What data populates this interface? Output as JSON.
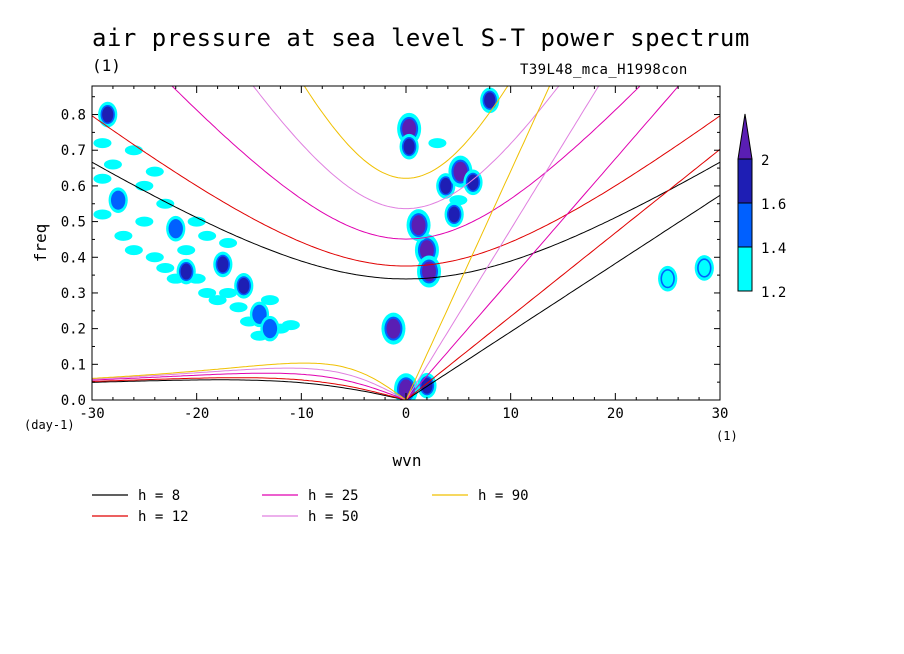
{
  "title": "air pressure at sea level S-T power spectrum",
  "subtitle_left": "(1)",
  "subtitle_right": "T39L48_mca_H1998con",
  "chart_data": {
    "type": "heatmap",
    "xlabel": "wvn",
    "ylabel": "freq",
    "x_unit": "(1)",
    "y_unit": "(day-1)",
    "xlim": [
      -30,
      30
    ],
    "ylim": [
      0.0,
      0.88
    ],
    "x_ticks": [
      -30,
      -20,
      -10,
      0,
      10,
      20,
      30
    ],
    "y_ticks": [
      0.0,
      0.1,
      0.2,
      0.3,
      0.4,
      0.5,
      0.6,
      0.7,
      0.8
    ],
    "colorbar": {
      "levels": [
        1.2,
        1.4,
        1.6,
        2
      ],
      "labels": [
        "1.2",
        "1.4",
        "1.6",
        "2"
      ],
      "colors": [
        "#00ffff",
        "#0060ff",
        "#1e1eb4",
        "#5a1eb4"
      ]
    },
    "dispersion_curves": [
      {
        "name": "h =  8",
        "h": 8,
        "color": "#000000"
      },
      {
        "name": "h = 12",
        "h": 12,
        "color": "#e00000"
      },
      {
        "name": "h = 25",
        "h": 25,
        "color": "#e000b0"
      },
      {
        "name": "h = 50",
        "h": 50,
        "color": "#e080e0"
      },
      {
        "name": "h = 90",
        "h": 90,
        "color": "#f0c000"
      }
    ],
    "blobs": [
      {
        "x": 0.3,
        "y": 0.76,
        "level": 2
      },
      {
        "x": 0.3,
        "y": 0.71,
        "level": 1.6
      },
      {
        "x": 2.0,
        "y": 0.42,
        "level": 2
      },
      {
        "x": 2.2,
        "y": 0.36,
        "level": 2
      },
      {
        "x": 1.2,
        "y": 0.49,
        "level": 2
      },
      {
        "x": 3.8,
        "y": 0.6,
        "level": 1.6
      },
      {
        "x": 5.2,
        "y": 0.64,
        "level": 2
      },
      {
        "x": 4.6,
        "y": 0.52,
        "level": 1.6
      },
      {
        "x": 6.4,
        "y": 0.61,
        "level": 1.6
      },
      {
        "x": 8.0,
        "y": 0.84,
        "level": 1.6
      },
      {
        "x": -1.2,
        "y": 0.2,
        "level": 2
      },
      {
        "x": 0.0,
        "y": 0.03,
        "level": 2
      },
      {
        "x": 2.0,
        "y": 0.04,
        "level": 1.6
      },
      {
        "x": -28.5,
        "y": 0.8,
        "level": 1.6
      },
      {
        "x": -27.5,
        "y": 0.56,
        "level": 1.4
      },
      {
        "x": -22.0,
        "y": 0.48,
        "level": 1.4
      },
      {
        "x": -21.0,
        "y": 0.36,
        "level": 1.6
      },
      {
        "x": -17.5,
        "y": 0.38,
        "level": 1.6
      },
      {
        "x": -15.5,
        "y": 0.32,
        "level": 1.6
      },
      {
        "x": -14.0,
        "y": 0.24,
        "level": 1.4
      },
      {
        "x": -13.0,
        "y": 0.2,
        "level": 1.4
      },
      {
        "x": 28.5,
        "y": 0.37,
        "level": 1.2
      },
      {
        "x": 25.0,
        "y": 0.34,
        "level": 1.2
      }
    ],
    "cyan_patches": [
      [
        -29,
        0.52
      ],
      [
        -27,
        0.46
      ],
      [
        -26,
        0.42
      ],
      [
        -25,
        0.6
      ],
      [
        -24,
        0.4
      ],
      [
        -23,
        0.37
      ],
      [
        -22,
        0.34
      ],
      [
        -20,
        0.34
      ],
      [
        -19,
        0.3
      ],
      [
        -18,
        0.28
      ],
      [
        -17,
        0.3
      ],
      [
        -16,
        0.26
      ],
      [
        -15,
        0.22
      ],
      [
        -14,
        0.18
      ],
      [
        -12,
        0.2
      ],
      [
        -29,
        0.72
      ],
      [
        -28,
        0.66
      ],
      [
        -26,
        0.7
      ],
      [
        -25,
        0.5
      ],
      [
        -23,
        0.55
      ],
      [
        -21,
        0.42
      ],
      [
        -19,
        0.46
      ],
      [
        -17,
        0.44
      ],
      [
        -13,
        0.28
      ],
      [
        -11,
        0.21
      ],
      [
        3,
        0.72
      ],
      [
        5,
        0.56
      ],
      [
        -29,
        0.62
      ],
      [
        -24,
        0.64
      ],
      [
        -20,
        0.5
      ]
    ]
  },
  "axes": {
    "y_tick_labels": [
      "0.0",
      "0.1",
      "0.2",
      "0.3",
      "0.4",
      "0.5",
      "0.6",
      "0.7",
      "0.8"
    ],
    "x_tick_labels": [
      "-30",
      "-20",
      "-10",
      "0",
      "10",
      "20",
      "30"
    ]
  }
}
